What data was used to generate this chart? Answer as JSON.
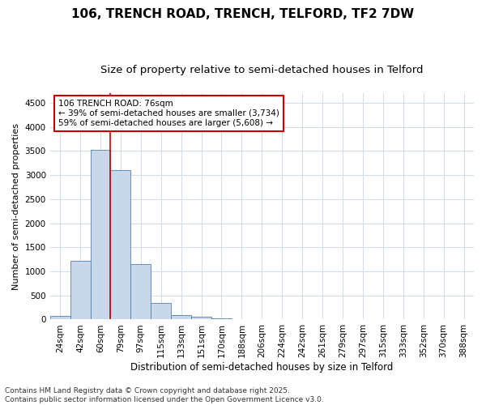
{
  "title1": "106, TRENCH ROAD, TRENCH, TELFORD, TF2 7DW",
  "title2": "Size of property relative to semi-detached houses in Telford",
  "xlabel": "Distribution of semi-detached houses by size in Telford",
  "ylabel": "Number of semi-detached properties",
  "categories": [
    "24sqm",
    "42sqm",
    "60sqm",
    "79sqm",
    "97sqm",
    "115sqm",
    "133sqm",
    "151sqm",
    "170sqm",
    "188sqm",
    "206sqm",
    "224sqm",
    "242sqm",
    "261sqm",
    "279sqm",
    "297sqm",
    "315sqm",
    "333sqm",
    "352sqm",
    "370sqm",
    "388sqm"
  ],
  "values": [
    80,
    1220,
    3520,
    3100,
    1150,
    350,
    100,
    50,
    20,
    0,
    0,
    0,
    0,
    0,
    0,
    0,
    0,
    0,
    0,
    0,
    0
  ],
  "bar_color": "#c8d8ea",
  "bar_edge_color": "#5080b0",
  "vline_color": "#cc0000",
  "vline_x_index": 2.5,
  "annotation_text": "106 TRENCH ROAD: 76sqm\n← 39% of semi-detached houses are smaller (3,734)\n59% of semi-detached houses are larger (5,608) →",
  "annotation_box_edgecolor": "#cc0000",
  "ylim": [
    0,
    4700
  ],
  "yticks": [
    0,
    500,
    1000,
    1500,
    2000,
    2500,
    3000,
    3500,
    4000,
    4500
  ],
  "footer_text": "Contains HM Land Registry data © Crown copyright and database right 2025.\nContains public sector information licensed under the Open Government Licence v3.0.",
  "bg_color": "#ffffff",
  "plot_bg_color": "#ffffff",
  "grid_color": "#d0dce8",
  "title1_fontsize": 11,
  "title2_fontsize": 9.5,
  "axis_label_fontsize": 8.5,
  "tick_fontsize": 7.5,
  "annotation_fontsize": 7.5,
  "footer_fontsize": 6.5,
  "ylabel_fontsize": 8
}
